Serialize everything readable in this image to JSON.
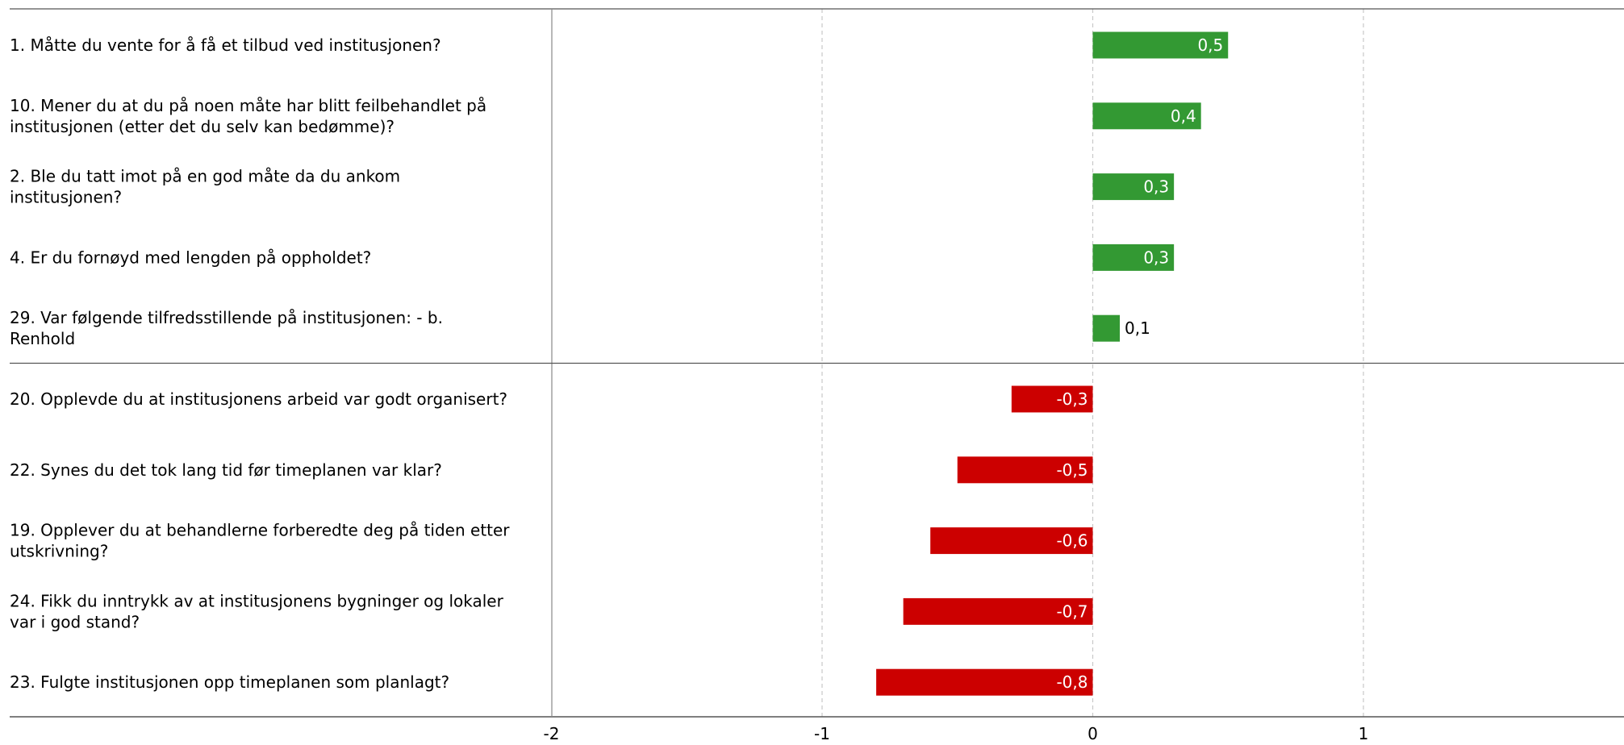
{
  "chart_data": {
    "type": "bar",
    "orientation": "horizontal",
    "xlim": [
      -2,
      2
    ],
    "xticks": [
      "-2",
      "-1",
      "0",
      "1"
    ],
    "grid": true,
    "colors": {
      "positive": "#339933",
      "negative": "#cc0000"
    },
    "groups": [
      {
        "items": [
          {
            "label": [
              "1. Måtte du vente for å få et tilbud ved institusjonen?"
            ],
            "value": 0.5,
            "value_label": "0,5"
          },
          {
            "label": [
              "10. Mener du at du på noen måte har blitt feilbehandlet på",
              "institusjonen (etter det du selv kan bedømme)?"
            ],
            "value": 0.4,
            "value_label": "0,4"
          },
          {
            "label": [
              "2. Ble du tatt imot på en god måte da du ankom",
              "institusjonen?"
            ],
            "value": 0.3,
            "value_label": "0,3"
          },
          {
            "label": [
              "4. Er du fornøyd med lengden på oppholdet?"
            ],
            "value": 0.3,
            "value_label": "0,3"
          },
          {
            "label": [
              "29. Var følgende tilfredsstillende på institusjonen: - b.",
              "Renhold"
            ],
            "value": 0.1,
            "value_label": "0,1"
          }
        ]
      },
      {
        "items": [
          {
            "label": [
              "20. Opplevde du at institusjonens arbeid var godt organisert?"
            ],
            "value": -0.3,
            "value_label": "-0,3"
          },
          {
            "label": [
              "22. Synes du det tok lang tid før timeplanen var klar?"
            ],
            "value": -0.5,
            "value_label": "-0,5"
          },
          {
            "label": [
              "19. Opplever du at behandlerne forberedte deg på tiden etter",
              "utskrivning?"
            ],
            "value": -0.6,
            "value_label": "-0,6"
          },
          {
            "label": [
              "24. Fikk du inntrykk av at institusjonens bygninger og lokaler",
              "var i god stand?"
            ],
            "value": -0.7,
            "value_label": "-0,7"
          },
          {
            "label": [
              "23. Fulgte institusjonen opp timeplanen som planlagt?"
            ],
            "value": -0.8,
            "value_label": "-0,8"
          }
        ]
      }
    ]
  }
}
